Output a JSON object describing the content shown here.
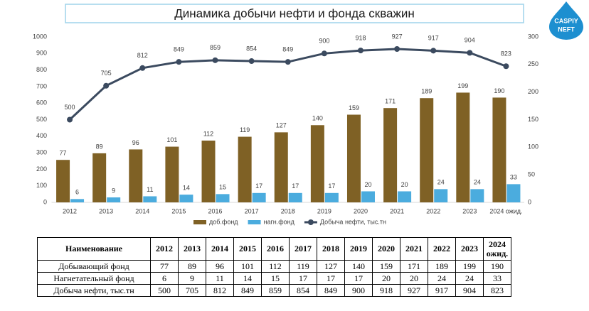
{
  "chart_data": {
    "type": "bar",
    "title": "Динамика добычи нефти и фонда скважин",
    "categories": [
      "2012",
      "2013",
      "2014",
      "2015",
      "2016",
      "2017",
      "2018",
      "2019",
      "2020",
      "2021",
      "2022",
      "2023",
      "2024 ожид."
    ],
    "series": [
      {
        "name": "доб.фонд",
        "type": "bar",
        "axis": "y2",
        "color": "#7f6125",
        "values": [
          77,
          89,
          96,
          101,
          112,
          119,
          127,
          140,
          159,
          171,
          189,
          199,
          190
        ]
      },
      {
        "name": "нагн.фонд",
        "type": "bar",
        "axis": "y2",
        "color": "#4bacde",
        "values": [
          6,
          9,
          11,
          14,
          15,
          17,
          17,
          17,
          20,
          20,
          24,
          24,
          33
        ]
      },
      {
        "name": "Добыча нефти, тыс.тн",
        "type": "line",
        "axis": "y",
        "color": "#3b4a5f",
        "values": [
          500,
          705,
          812,
          849,
          859,
          854,
          849,
          900,
          918,
          927,
          917,
          904,
          823
        ]
      }
    ],
    "ylim": [
      0,
      1000
    ],
    "yticks": [
      0,
      100,
      200,
      300,
      400,
      500,
      600,
      700,
      800,
      900,
      1000
    ],
    "y2lim": [
      0,
      300
    ],
    "y2ticks": [
      0,
      50,
      100,
      150,
      200,
      250,
      300
    ],
    "grid": false,
    "legend": "bottom"
  },
  "logo": {
    "line1": "CASPIY",
    "line2": "NEFT"
  },
  "table": {
    "header": "Наименование",
    "rows": [
      "Добывающий фонд",
      "Нагнетательный фонд",
      "Добыча нефти, тыс.тн"
    ]
  }
}
